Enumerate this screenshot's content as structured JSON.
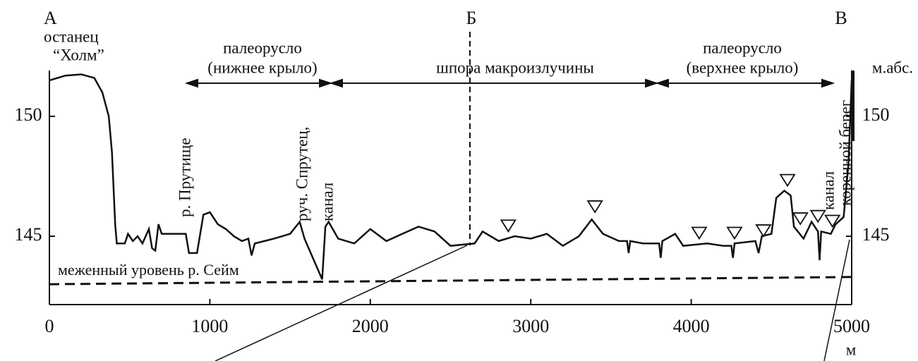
{
  "chart_data": {
    "type": "line",
    "x": [
      0,
      100,
      200,
      280,
      330,
      370,
      390,
      400,
      410,
      420,
      470,
      490,
      520,
      550,
      580,
      620,
      640,
      660,
      680,
      700,
      850,
      870,
      920,
      960,
      1000,
      1050,
      1100,
      1150,
      1200,
      1240,
      1260,
      1280,
      1400,
      1500,
      1560,
      1590,
      1700,
      1720,
      1740,
      1800,
      1900,
      2000,
      2100,
      2200,
      2300,
      2400,
      2500,
      2650,
      2700,
      2800,
      2900,
      3000,
      3100,
      3200,
      3300,
      3380,
      3450,
      3550,
      3600,
      3610,
      3620,
      3700,
      3800,
      3810,
      3820,
      3900,
      3950,
      4100,
      4200,
      4250,
      4260,
      4270,
      4400,
      4420,
      4440,
      4500,
      4530,
      4580,
      4620,
      4640,
      4700,
      4750,
      4790,
      4800,
      4810,
      4870,
      4900,
      4950,
      4980,
      5000
    ],
    "values": [
      151.5,
      151.7,
      151.75,
      151.6,
      151,
      150,
      148.5,
      147,
      145.5,
      144.7,
      144.7,
      145.1,
      144.8,
      145.0,
      144.7,
      145.3,
      144.5,
      144.4,
      145.5,
      145.1,
      145.1,
      144.3,
      144.3,
      145.9,
      146.0,
      145.5,
      145.3,
      145.0,
      144.8,
      144.9,
      144.2,
      144.7,
      144.9,
      145.1,
      145.6,
      144.9,
      143.2,
      145.4,
      145.6,
      144.9,
      144.7,
      145.3,
      144.8,
      145.1,
      145.4,
      145.2,
      144.6,
      144.7,
      145.2,
      144.8,
      145.0,
      144.9,
      145.1,
      144.6,
      145.0,
      145.7,
      145.1,
      144.8,
      144.8,
      144.3,
      144.8,
      144.7,
      144.7,
      144.1,
      144.8,
      145.1,
      144.6,
      144.7,
      144.6,
      144.6,
      144.1,
      144.7,
      144.8,
      144.3,
      145.0,
      145.1,
      146.6,
      146.9,
      146.7,
      145.4,
      144.9,
      145.6,
      145.2,
      144.0,
      145.2,
      145.1,
      145.5,
      145.8,
      148,
      151.5
    ],
    "color": "#111111",
    "water_level": {
      "name": "меженный уровень р. Сейм",
      "x": [
        0,
        5000
      ],
      "values": [
        143.0,
        143.3
      ]
    },
    "water_table_marks": {
      "x": [
        2860,
        3400,
        4050,
        4270,
        4450,
        4600,
        4680,
        4790,
        4880
      ],
      "values": [
        145.2,
        146.0,
        144.9,
        144.9,
        145.0,
        147.1,
        145.5,
        145.6,
        145.4
      ]
    },
    "xlim": [
      0,
      5000
    ],
    "xticks": [
      0,
      1000,
      2000,
      3000,
      4000,
      5000
    ],
    "x_unit": "м",
    "ylim": [
      142.15,
      152
    ],
    "yticks": [
      145,
      150
    ],
    "y2lim": [
      142.15,
      152
    ],
    "y2ticks": [
      145,
      150
    ],
    "y2_label": "м.абс.",
    "annotations": [
      "А",
      "останец",
      "“Холм”",
      "палеорусло",
      "(нижнее крыло)",
      "Б",
      "шпора макроизлучины",
      "В",
      "палеорусло",
      "(верхнее крыло)",
      "р. Прутище",
      "руч. Спрутец,",
      "канал",
      "канал",
      "коренной берег"
    ]
  }
}
